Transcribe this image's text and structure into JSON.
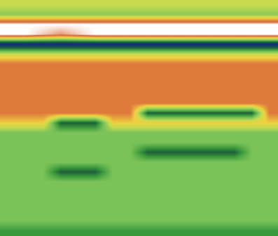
{
  "chart_data": {
    "type": "heatmap",
    "cells": [
      [
        5.5,
        5.5,
        5.5,
        5.5,
        5.5,
        5.5,
        5.5,
        5.5,
        5.5,
        5.5,
        5.5,
        5.5,
        5.5,
        5.5,
        5.5,
        5.5
      ],
      [
        4.5,
        4.5,
        4.5,
        4.5,
        4.5,
        4.5,
        4.5,
        4.5,
        4.5,
        4.5,
        4.5,
        4.5,
        4.5,
        4.5,
        4.5,
        4.5
      ],
      [
        10,
        10,
        10,
        10,
        10,
        10,
        10,
        10,
        10,
        10,
        10,
        10,
        10,
        10,
        10,
        10
      ],
      [
        10,
        10,
        9.5,
        9,
        9.5,
        10,
        10,
        10,
        10,
        10,
        10,
        10,
        10,
        10,
        10,
        10
      ],
      [
        0,
        0,
        0,
        0,
        0,
        0,
        0,
        0,
        0,
        0,
        0,
        0,
        0,
        0,
        0,
        0
      ],
      [
        5.5,
        5.5,
        5.5,
        5.5,
        5.5,
        5.5,
        5.5,
        5.5,
        5.5,
        5.5,
        5.5,
        5.5,
        5.5,
        5.5,
        5.5,
        5.5
      ],
      [
        8,
        8,
        8,
        8,
        8,
        8,
        8,
        8,
        8,
        8,
        8,
        8,
        8,
        8,
        8,
        8
      ],
      [
        8,
        8,
        8,
        8,
        8,
        8,
        8,
        8,
        8,
        8,
        8,
        8,
        8,
        8,
        8,
        8
      ],
      [
        8,
        8,
        8,
        8,
        8,
        8,
        8,
        8,
        8,
        8,
        8,
        8,
        8,
        8,
        8,
        8
      ],
      [
        8,
        8,
        8,
        8,
        8,
        8,
        8,
        8,
        8,
        8,
        8,
        8,
        8,
        8,
        8,
        8
      ],
      [
        8,
        8,
        8,
        8,
        8,
        8,
        8,
        8,
        8,
        8,
        8,
        8,
        8,
        8,
        8,
        8
      ],
      [
        8,
        8,
        8,
        8,
        8,
        8,
        8,
        8,
        2,
        2,
        2,
        2,
        2,
        2,
        2,
        8
      ],
      [
        6.5,
        6.5,
        6.5,
        2,
        2,
        2,
        6.5,
        6.5,
        6.5,
        6.5,
        6.5,
        6.5,
        6.5,
        6.5,
        6.5,
        6.5
      ],
      [
        4.2,
        4.2,
        4.2,
        4.2,
        4.2,
        4.2,
        4.2,
        4.2,
        4.2,
        4.2,
        4.2,
        4.2,
        4.2,
        4.2,
        4.2,
        4.2
      ],
      [
        4.2,
        4.2,
        4.2,
        4.2,
        4.2,
        4.2,
        4.2,
        4.2,
        4.2,
        4.2,
        4.2,
        4.2,
        4.2,
        4.2,
        4.2,
        4.2
      ],
      [
        4.2,
        4.2,
        4.2,
        4.2,
        4.2,
        4.2,
        4.2,
        4.2,
        2,
        2,
        2,
        2,
        2,
        2,
        4.2,
        4.2
      ],
      [
        4.2,
        4.2,
        4.2,
        4.2,
        4.2,
        4.2,
        4.2,
        4.2,
        4.2,
        4.2,
        4.2,
        4.2,
        4.2,
        4.2,
        4.2,
        4.2
      ],
      [
        4.2,
        4.2,
        4.2,
        2,
        2,
        2,
        4.2,
        4.2,
        4.2,
        4.2,
        4.2,
        4.2,
        4.2,
        4.2,
        4.2,
        4.2
      ],
      [
        4.2,
        4.2,
        4.2,
        4.2,
        4.2,
        4.2,
        4.2,
        4.2,
        4.2,
        4.2,
        4.2,
        4.2,
        4.2,
        4.2,
        4.2,
        4.2
      ],
      [
        4.2,
        4.2,
        4.2,
        4.2,
        4.2,
        4.2,
        4.2,
        4.2,
        4.2,
        4.2,
        4.2,
        4.2,
        4.2,
        4.2,
        4.2,
        4.2
      ],
      [
        4.2,
        4.2,
        4.2,
        4.2,
        4.2,
        4.2,
        4.2,
        4.2,
        4.2,
        4.2,
        4.2,
        4.2,
        4.2,
        4.2,
        4.2,
        4.2
      ],
      [
        4.2,
        4.2,
        4.2,
        4.2,
        4.2,
        4.2,
        4.2,
        4.2,
        4.2,
        4.2,
        4.2,
        4.2,
        4.2,
        4.2,
        4.2,
        4.2
      ],
      [
        4.2,
        4.2,
        4.2,
        4.2,
        4.2,
        4.2,
        4.2,
        4.2,
        4.2,
        4.2,
        4.2,
        4.2,
        4.2,
        4.2,
        4.2,
        4.2
      ],
      [
        3,
        3,
        3,
        3,
        3,
        3,
        3,
        3,
        3,
        3,
        3,
        3,
        3,
        3,
        3,
        3
      ]
    ],
    "clim": [
      0,
      10
    ],
    "tick_labels": false
  }
}
